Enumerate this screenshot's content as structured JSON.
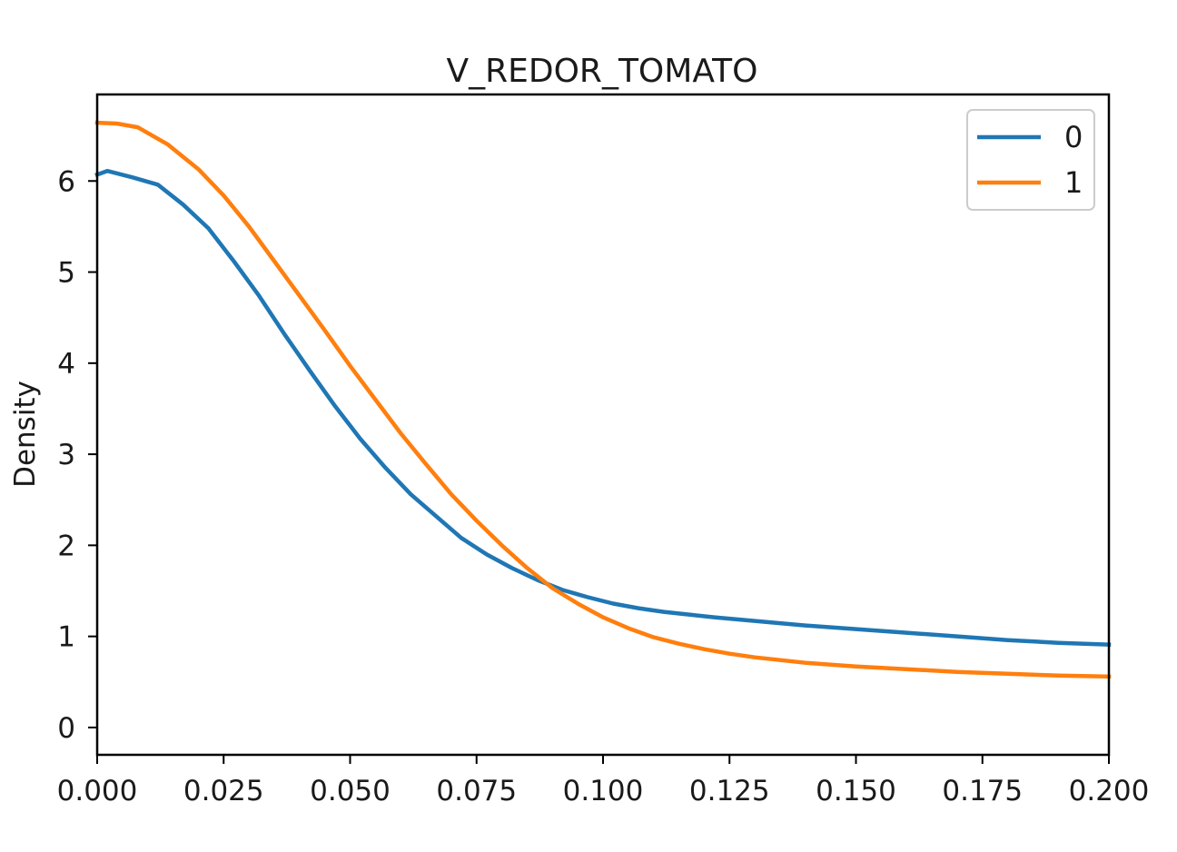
{
  "chart_data": {
    "type": "line",
    "title": "V_REDOR_TOMATO",
    "xlabel": "",
    "ylabel": "Density",
    "xlim": [
      0,
      0.2
    ],
    "ylim": [
      -0.3,
      6.95
    ],
    "x_ticks": [
      "0.000",
      "0.025",
      "0.050",
      "0.075",
      "0.100",
      "0.125",
      "0.150",
      "0.175",
      "0.200"
    ],
    "y_ticks": [
      "0",
      "1",
      "2",
      "3",
      "4",
      "5",
      "6"
    ],
    "grid": false,
    "legend_position": "top-right",
    "series": [
      {
        "name": "0",
        "color": "#1f77b4",
        "points": [
          [
            0,
            6.07
          ],
          [
            0.002,
            6.11
          ],
          [
            0.007,
            6.04
          ],
          [
            0.012,
            5.96
          ],
          [
            0.017,
            5.74
          ],
          [
            0.022,
            5.48
          ],
          [
            0.027,
            5.12
          ],
          [
            0.032,
            4.74
          ],
          [
            0.037,
            4.32
          ],
          [
            0.042,
            3.92
          ],
          [
            0.047,
            3.53
          ],
          [
            0.052,
            3.17
          ],
          [
            0.057,
            2.85
          ],
          [
            0.062,
            2.56
          ],
          [
            0.067,
            2.32
          ],
          [
            0.072,
            2.08
          ],
          [
            0.077,
            1.9
          ],
          [
            0.082,
            1.75
          ],
          [
            0.087,
            1.62
          ],
          [
            0.092,
            1.51
          ],
          [
            0.097,
            1.43
          ],
          [
            0.102,
            1.36
          ],
          [
            0.107,
            1.31
          ],
          [
            0.112,
            1.27
          ],
          [
            0.117,
            1.24
          ],
          [
            0.122,
            1.21
          ],
          [
            0.13,
            1.17
          ],
          [
            0.14,
            1.12
          ],
          [
            0.15,
            1.08
          ],
          [
            0.16,
            1.04
          ],
          [
            0.17,
            1.0
          ],
          [
            0.18,
            0.96
          ],
          [
            0.19,
            0.93
          ],
          [
            0.2,
            0.91
          ]
        ]
      },
      {
        "name": "1",
        "color": "#ff7f0e",
        "points": [
          [
            0,
            6.64
          ],
          [
            0.004,
            6.63
          ],
          [
            0.008,
            6.59
          ],
          [
            0.014,
            6.4
          ],
          [
            0.02,
            6.13
          ],
          [
            0.025,
            5.84
          ],
          [
            0.03,
            5.5
          ],
          [
            0.035,
            5.12
          ],
          [
            0.04,
            4.74
          ],
          [
            0.045,
            4.36
          ],
          [
            0.05,
            3.97
          ],
          [
            0.055,
            3.6
          ],
          [
            0.06,
            3.23
          ],
          [
            0.065,
            2.89
          ],
          [
            0.07,
            2.56
          ],
          [
            0.075,
            2.27
          ],
          [
            0.08,
            2.0
          ],
          [
            0.085,
            1.75
          ],
          [
            0.09,
            1.53
          ],
          [
            0.095,
            1.36
          ],
          [
            0.1,
            1.21
          ],
          [
            0.105,
            1.09
          ],
          [
            0.11,
            0.99
          ],
          [
            0.115,
            0.92
          ],
          [
            0.12,
            0.86
          ],
          [
            0.125,
            0.81
          ],
          [
            0.13,
            0.77
          ],
          [
            0.14,
            0.71
          ],
          [
            0.15,
            0.67
          ],
          [
            0.16,
            0.64
          ],
          [
            0.17,
            0.61
          ],
          [
            0.18,
            0.59
          ],
          [
            0.19,
            0.57
          ],
          [
            0.2,
            0.56
          ]
        ]
      }
    ]
  }
}
